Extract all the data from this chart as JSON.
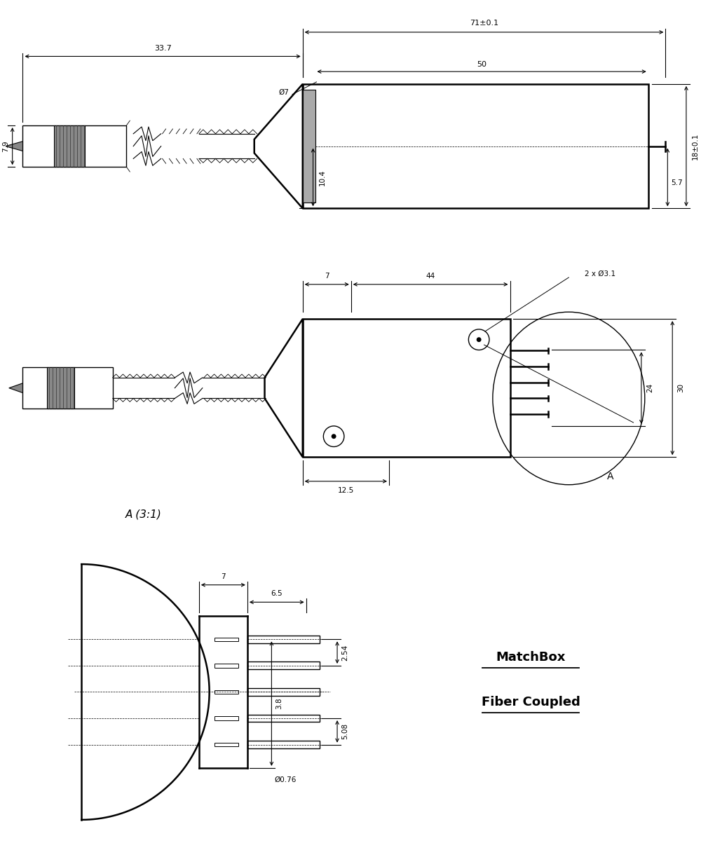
{
  "bg_color": "#ffffff",
  "line_color": "#000000",
  "fig_width": 10.0,
  "fig_height": 12.03,
  "view1": {
    "label_71": "71±0.1",
    "label_33_7": "33.7",
    "label_50": "50",
    "label_dia7": "Ø7",
    "label_7_9": "7.9",
    "label_10_4": "10.4",
    "label_18": "18±0.1",
    "label_5_7": "5.7"
  },
  "view2": {
    "label_7": "7",
    "label_44": "44",
    "label_2xdia3_1": "2 x Ø3.1",
    "label_12_5": "12.5",
    "label_24": "24",
    "label_30": "30",
    "label_A": "A",
    "label_A31": "A (3:1)"
  },
  "view3": {
    "label_7": "7",
    "label_6_5": "6.5",
    "label_5_08": "5.08",
    "label_2_54": "2.54",
    "label_3_8": "3.8",
    "label_dia0_76": "Ø0.76",
    "label_matchbox": "MatchBox",
    "label_fiber": "Fiber Coupled"
  }
}
